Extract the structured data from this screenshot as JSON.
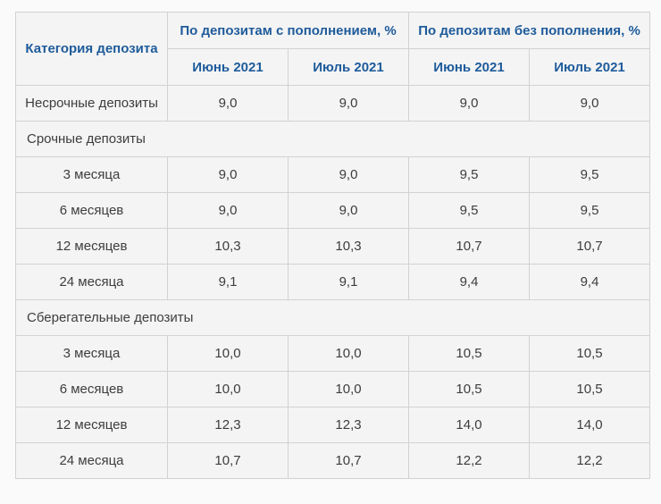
{
  "table": {
    "corner_header": "Категория депозита",
    "groups": [
      {
        "label": "По депозитам с пополнением, %"
      },
      {
        "label": "По депозитам без пополнения, %"
      }
    ],
    "subheaders": [
      "Июнь 2021",
      "Июль 2021",
      "Июнь 2021",
      "Июль 2021"
    ],
    "rows": [
      {
        "type": "data",
        "label": "Несрочные депозиты",
        "values": [
          "9,0",
          "9,0",
          "9,0",
          "9,0"
        ]
      },
      {
        "type": "section",
        "label": "Срочные депозиты"
      },
      {
        "type": "data",
        "label": "3 месяца",
        "values": [
          "9,0",
          "9,0",
          "9,5",
          "9,5"
        ]
      },
      {
        "type": "data",
        "label": "6 месяцев",
        "values": [
          "9,0",
          "9,0",
          "9,5",
          "9,5"
        ]
      },
      {
        "type": "data",
        "label": "12 месяцев",
        "values": [
          "10,3",
          "10,3",
          "10,7",
          "10,7"
        ]
      },
      {
        "type": "data",
        "label": "24 месяца",
        "values": [
          "9,1",
          "9,1",
          "9,4",
          "9,4"
        ]
      },
      {
        "type": "section",
        "label": "Сберегательные депозиты"
      },
      {
        "type": "data",
        "label": "3 месяца",
        "values": [
          "10,0",
          "10,0",
          "10,5",
          "10,5"
        ]
      },
      {
        "type": "data",
        "label": "6 месяцев",
        "values": [
          "10,0",
          "10,0",
          "10,5",
          "10,5"
        ]
      },
      {
        "type": "data",
        "label": "12 месяцев",
        "values": [
          "12,3",
          "12,3",
          "14,0",
          "14,0"
        ]
      },
      {
        "type": "data",
        "label": "24 месяца",
        "values": [
          "10,7",
          "10,7",
          "12,2",
          "12,2"
        ]
      }
    ],
    "colors": {
      "header_text": "#1e5b9b",
      "body_text": "#3d3d3d",
      "cell_background": "#f4f4f4",
      "page_background": "#fafafa",
      "border": "#d2d2d2"
    }
  }
}
